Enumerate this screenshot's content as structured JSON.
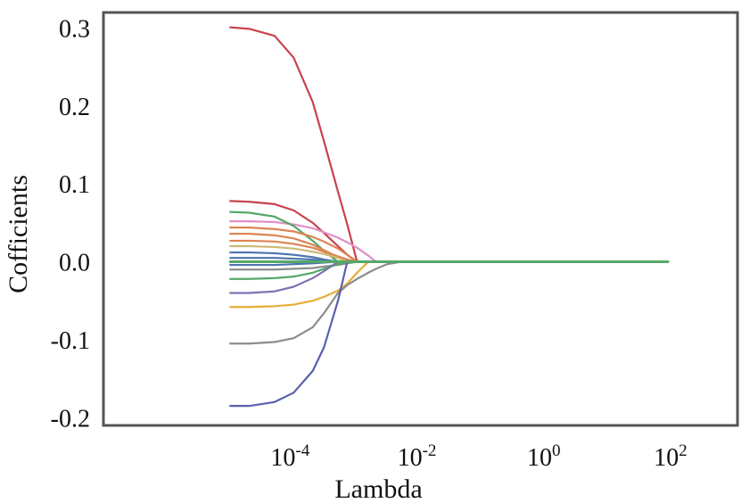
{
  "chart_data": {
    "type": "line",
    "title": "",
    "xlabel": "Lambda",
    "ylabel": "Cofficients",
    "xscale": "log",
    "xlim": [
      1e-07,
      1000
    ],
    "ylim": [
      -0.21,
      0.32
    ],
    "grid": false,
    "legend": "none",
    "x_ticks": [
      {
        "value": 0.0001,
        "base": "10",
        "exp": "-4"
      },
      {
        "value": 0.01,
        "base": "10",
        "exp": "-2"
      },
      {
        "value": 1,
        "base": "10",
        "exp": "0"
      },
      {
        "value": 100,
        "base": "10",
        "exp": "2"
      }
    ],
    "y_ticks": [
      {
        "value": 0.3,
        "label": "0.3"
      },
      {
        "value": 0.2,
        "label": "0.2"
      },
      {
        "value": 0.1,
        "label": "0.1"
      },
      {
        "value": 0.0,
        "label": "0.0"
      },
      {
        "value": -0.1,
        "label": "-0.1"
      },
      {
        "value": -0.2,
        "label": "-0.2"
      }
    ],
    "x": [
      1e-05,
      2e-05,
      5e-05,
      0.0001,
      0.0002,
      0.0003,
      0.0005,
      0.0007,
      0.001,
      0.0015,
      0.002,
      0.003,
      0.005,
      0.01,
      0.1,
      1,
      10,
      80
    ],
    "series": [
      {
        "color": "#c8434d",
        "values": [
          0.301,
          0.299,
          0.29,
          0.262,
          0.205,
          0.155,
          0.09,
          0.048,
          0.0,
          0.0,
          0.0,
          0.0,
          0.0,
          0.0,
          0.0,
          0.0,
          0.0,
          0.0
        ]
      },
      {
        "color": "#c8434d",
        "values": [
          0.078,
          0.077,
          0.074,
          0.066,
          0.05,
          0.037,
          0.02,
          0.009,
          0.0,
          0.0,
          0.0,
          0.0,
          0.0,
          0.0,
          0.0,
          0.0,
          0.0,
          0.0
        ]
      },
      {
        "color": "#e08fc8",
        "values": [
          0.052,
          0.052,
          0.051,
          0.048,
          0.043,
          0.038,
          0.031,
          0.025,
          0.018,
          0.008,
          0.0,
          0.0,
          0.0,
          0.0,
          0.0,
          0.0,
          0.0,
          0.0
        ]
      },
      {
        "color": "#55a868",
        "values": [
          0.064,
          0.063,
          0.058,
          0.046,
          0.027,
          0.014,
          0.0,
          0.0,
          0.0,
          0.0,
          0.0,
          0.0,
          0.0,
          0.0,
          0.0,
          0.0,
          0.0,
          0.0
        ]
      },
      {
        "color": "#dd8452",
        "values": [
          0.044,
          0.044,
          0.042,
          0.039,
          0.032,
          0.026,
          0.017,
          0.009,
          0.0,
          0.0,
          0.0,
          0.0,
          0.0,
          0.0,
          0.0,
          0.0,
          0.0,
          0.0
        ]
      },
      {
        "color": "#dd8452",
        "values": [
          0.036,
          0.036,
          0.034,
          0.03,
          0.022,
          0.015,
          0.006,
          0.0,
          0.0,
          0.0,
          0.0,
          0.0,
          0.0,
          0.0,
          0.0,
          0.0,
          0.0,
          0.0
        ]
      },
      {
        "color": "#dd8452",
        "values": [
          0.027,
          0.027,
          0.026,
          0.023,
          0.018,
          0.013,
          0.007,
          0.003,
          0.0,
          0.0,
          0.0,
          0.0,
          0.0,
          0.0,
          0.0,
          0.0,
          0.0,
          0.0
        ]
      },
      {
        "color": "#ccb974",
        "values": [
          0.02,
          0.02,
          0.019,
          0.017,
          0.013,
          0.01,
          0.005,
          0.0,
          0.0,
          0.0,
          0.0,
          0.0,
          0.0,
          0.0,
          0.0,
          0.0,
          0.0,
          0.0
        ]
      },
      {
        "color": "#4c72b0",
        "values": [
          0.012,
          0.012,
          0.011,
          0.009,
          0.006,
          0.003,
          0.0,
          0.0,
          0.0,
          0.0,
          0.0,
          0.0,
          0.0,
          0.0,
          0.0,
          0.0,
          0.0,
          0.0
        ]
      },
      {
        "color": "#4c72b0",
        "values": [
          0.005,
          0.005,
          0.005,
          0.004,
          0.003,
          0.001,
          0.0,
          0.0,
          0.0,
          0.0,
          0.0,
          0.0,
          0.0,
          0.0,
          0.0,
          0.0,
          0.0,
          0.0
        ]
      },
      {
        "color": "#4c72b0",
        "values": [
          -0.004,
          -0.004,
          -0.004,
          -0.003,
          -0.002,
          -0.001,
          0.0,
          0.0,
          0.0,
          0.0,
          0.0,
          0.0,
          0.0,
          0.0,
          0.0,
          0.0,
          0.0,
          0.0
        ]
      },
      {
        "color": "#8c8c8c",
        "values": [
          -0.01,
          -0.01,
          -0.01,
          -0.009,
          -0.008,
          -0.006,
          -0.004,
          -0.002,
          0.0,
          0.0,
          0.0,
          0.0,
          0.0,
          0.0,
          0.0,
          0.0,
          0.0,
          0.0
        ]
      },
      {
        "color": "#55a868",
        "values": [
          -0.022,
          -0.022,
          -0.021,
          -0.019,
          -0.014,
          -0.009,
          -0.003,
          0.0,
          0.0,
          0.0,
          0.0,
          0.0,
          0.0,
          0.0,
          0.0,
          0.0,
          0.0,
          0.0
        ]
      },
      {
        "color": "#8172b3",
        "values": [
          -0.04,
          -0.04,
          -0.038,
          -0.032,
          -0.021,
          -0.012,
          0.0,
          0.0,
          0.0,
          0.0,
          0.0,
          0.0,
          0.0,
          0.0,
          0.0,
          0.0,
          0.0,
          0.0
        ]
      },
      {
        "color": "#e5ae38",
        "values": [
          -0.058,
          -0.058,
          -0.057,
          -0.055,
          -0.05,
          -0.045,
          -0.037,
          -0.028,
          -0.014,
          0.0,
          0.0,
          0.0,
          0.0,
          0.0,
          0.0,
          0.0,
          0.0,
          0.0
        ]
      },
      {
        "color": "#8c8c8c",
        "values": [
          -0.105,
          -0.105,
          -0.103,
          -0.098,
          -0.084,
          -0.066,
          -0.04,
          -0.03,
          -0.022,
          -0.014,
          -0.009,
          -0.003,
          0.0,
          0.0,
          0.0,
          0.0,
          0.0,
          0.0
        ]
      },
      {
        "color": "#5a5fb0",
        "values": [
          -0.185,
          -0.185,
          -0.18,
          -0.168,
          -0.14,
          -0.11,
          -0.05,
          0.0,
          0.0,
          0.0,
          0.0,
          0.0,
          0.0,
          0.0,
          0.0,
          0.0,
          0.0,
          0.0
        ]
      },
      {
        "color": "#55a868",
        "values": [
          0.0,
          0.0,
          0.0,
          0.0,
          0.0,
          0.0,
          0.0,
          0.0,
          0.0,
          0.0,
          0.0,
          0.0,
          0.0,
          0.0,
          0.0,
          0.0,
          0.0,
          0.0
        ]
      }
    ]
  }
}
